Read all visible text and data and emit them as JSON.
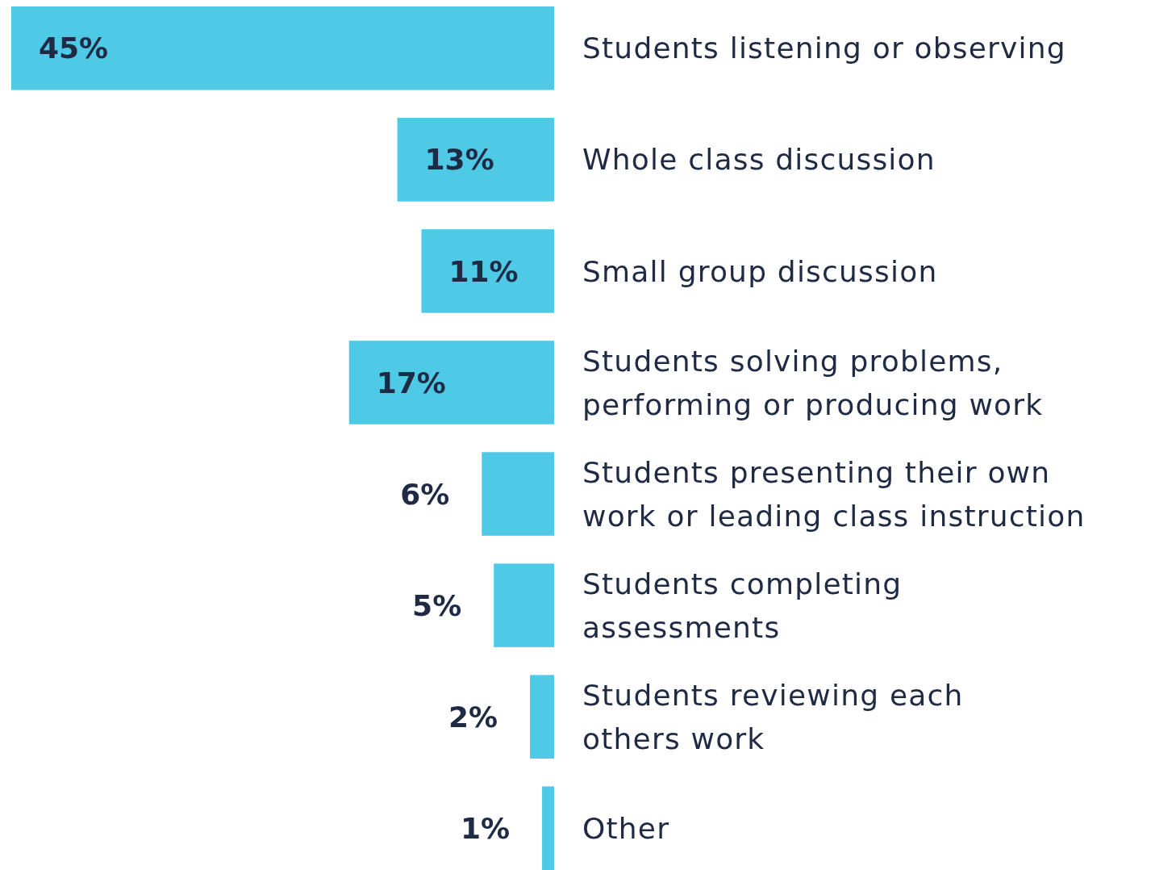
{
  "chart_data": {
    "type": "bar",
    "orientation": "horizontal",
    "categories": [
      "Students listening or observing",
      "Whole class discussion",
      "Small group discussion",
      "Students solving problems,\nperforming or producing work",
      "Students presenting their own\nwork or leading class instruction",
      "Students completing\nassessments",
      "Students reviewing each\nothers work",
      "Other"
    ],
    "values": [
      45,
      13,
      11,
      17,
      6,
      5,
      2,
      1
    ],
    "value_labels": [
      "45%",
      "13%",
      "11%",
      "17%",
      "6%",
      "5%",
      "2%",
      "1%"
    ],
    "color": "#4ec9e6",
    "tick_labels": false
  }
}
